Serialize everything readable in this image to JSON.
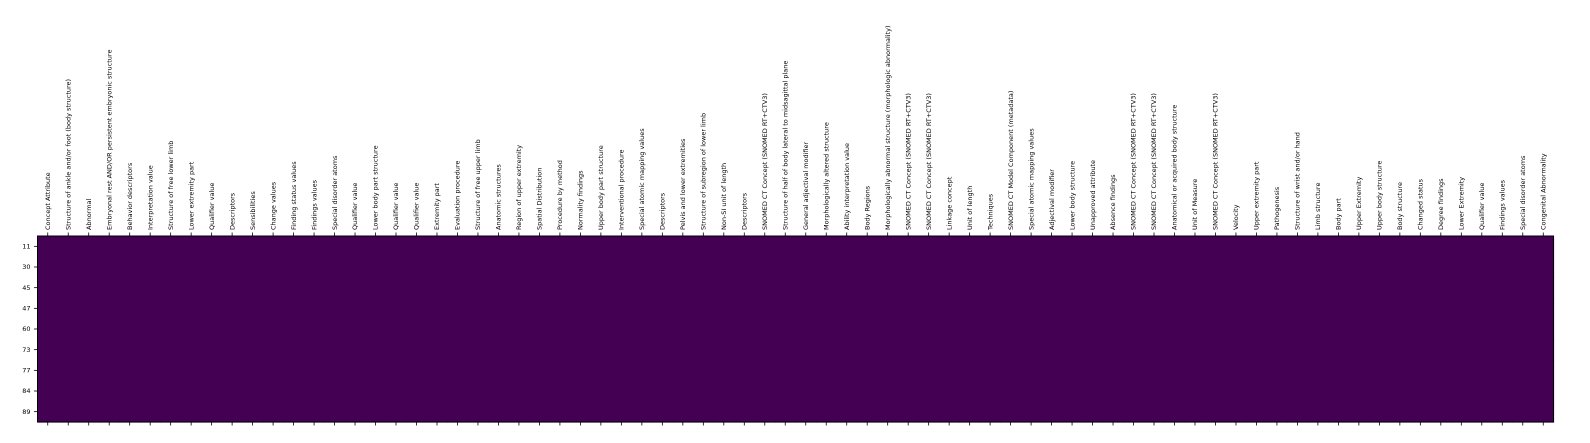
{
  "colors": {
    "cell": "#440154",
    "frame": "#000000",
    "background": "#ffffff"
  },
  "chart_data": {
    "type": "heatmap",
    "colormap": "viridis",
    "title": "",
    "xlabel": "",
    "ylabel": "",
    "x_labels_position": "top",
    "x_labels_rotation": 90,
    "columns": [
      "Concept Attribute",
      "Structure of ankle and/or foot (body structure)",
      "Abnormal",
      "Embryonal rest AND/OR persistent embryonic structure",
      "Behavior descriptors",
      "Interpretation value",
      "Structure of free lower limb",
      "Lower extremity part",
      "Qualifier value",
      "Descriptors",
      "Sensibilities",
      "Change values",
      "Finding status values",
      "Findings values",
      "Special disorder atoms",
      "Qualifier value",
      "Lower body part structure",
      "Qualifier value",
      "Qualifier value",
      "Extremity part",
      "Evaluation procedure",
      "Structure of free upper limb",
      "Anatomic structures",
      "Region of upper extremity",
      "Spatial Distribution",
      "Procedure by method",
      "Normality findings",
      "Upper body part structure",
      "Interventional procedure",
      "Special atomic mapping values",
      "Descriptors",
      "Pelvis and lower extremities",
      "Structure of subregion of lower limb",
      "Non-SI unit of length",
      "Descriptors",
      "SNOMED CT Concept (SNOMED RT+CTV3)",
      "Structure of half of body lateral to midsagittal plane",
      "General adjectival modifier",
      "Morphologically altered structure",
      "Ability interpretation value",
      "Body Regions",
      "Morphologically abnormal structure (morphologic abnormality)",
      "SNOMED CT Concept (SNOMED RT+CTV3)",
      "SNOMED CT Concept (SNOMED RT+CTV3)",
      "Linkage concept",
      "Unit of length",
      "Techniques",
      "SNOMED CT Model Component (metadata)",
      "Special atomic mapping values",
      "Adjectival modifier",
      "Lower body structure",
      "Unapproved attribute",
      "Absence findings",
      "SNOMED CT Concept (SNOMED RT+CTV3)",
      "SNOMED CT Concept (SNOMED RT+CTV3)",
      "Anatomical or acquired body structure",
      "Unit of Measure",
      "SNOMED CT Concept (SNOMED RT+CTV3)",
      "Velocity",
      "Upper extremity part",
      "Pathogenesis",
      "Structure of wrist and/or hand",
      "Limb structure",
      "Body part",
      "Upper Extremity",
      "Upper body structure",
      "Body structure",
      "Changed status",
      "Degree findings",
      "Lower Extremity",
      "Qualifier value",
      "Findings values",
      "Special disorder atoms",
      "Congenital Abnormality"
    ],
    "rows": [
      "11",
      "30",
      "45",
      "47",
      "60",
      "73",
      "77",
      "84",
      "89"
    ],
    "uniform_value": 0,
    "color_of_uniform_value": "#440154",
    "grid": false,
    "legend": "none"
  }
}
